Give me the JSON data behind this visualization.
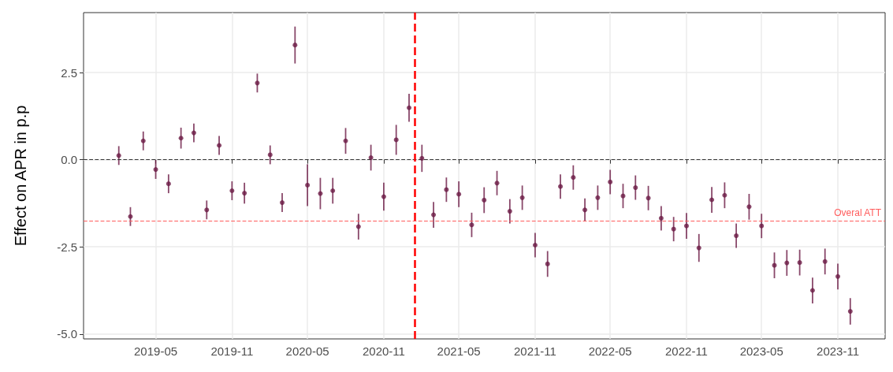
{
  "chart_data": {
    "type": "scatter",
    "ylabel": "Effect on APR in p.p",
    "x": [
      "2019-02",
      "2019-03",
      "2019-04",
      "2019-05",
      "2019-06",
      "2019-07",
      "2019-08",
      "2019-09",
      "2019-10",
      "2019-11",
      "2019-12",
      "2020-01",
      "2020-02",
      "2020-03",
      "2020-04",
      "2020-05",
      "2020-06",
      "2020-07",
      "2020-08",
      "2020-09",
      "2020-10",
      "2020-11",
      "2020-12",
      "2021-01",
      "2021-02",
      "2021-03",
      "2021-04",
      "2021-05",
      "2021-06",
      "2021-07",
      "2021-08",
      "2021-09",
      "2021-10",
      "2021-11",
      "2021-12",
      "2022-01",
      "2022-02",
      "2022-03",
      "2022-04",
      "2022-05",
      "2022-06",
      "2022-07",
      "2022-08",
      "2022-09",
      "2022-10",
      "2022-11",
      "2022-12",
      "2023-01",
      "2023-02",
      "2023-03",
      "2023-04",
      "2023-05",
      "2023-06",
      "2023-07",
      "2023-08",
      "2023-09",
      "2023-10",
      "2023-11",
      "2023-12"
    ],
    "values": [
      0.12,
      -1.63,
      0.54,
      -0.28,
      -0.69,
      0.62,
      0.77,
      -1.44,
      0.41,
      -0.89,
      -0.96,
      2.2,
      0.14,
      -1.23,
      3.29,
      -0.73,
      -0.97,
      -0.89,
      0.54,
      -1.92,
      0.06,
      -1.06,
      0.57,
      1.49,
      0.04,
      -1.58,
      -0.86,
      -0.99,
      -1.87,
      -1.16,
      -0.67,
      -1.48,
      -1.09,
      -2.45,
      -2.99,
      -0.77,
      -0.51,
      -1.44,
      -1.09,
      -0.64,
      -1.04,
      -0.8,
      -1.1,
      -1.68,
      -1.99,
      -1.9,
      -2.53,
      -1.15,
      -1.02,
      -2.18,
      -1.35,
      -1.9,
      -3.03,
      -2.96,
      -2.95,
      -3.75,
      -2.92,
      -3.35,
      -4.35
    ],
    "errors": [
      0.27,
      0.27,
      0.27,
      0.27,
      0.27,
      0.3,
      0.27,
      0.27,
      0.27,
      0.27,
      0.3,
      0.27,
      0.27,
      0.27,
      0.53,
      0.6,
      0.45,
      0.37,
      0.37,
      0.37,
      0.37,
      0.4,
      0.43,
      0.4,
      0.39,
      0.37,
      0.35,
      0.37,
      0.35,
      0.37,
      0.35,
      0.35,
      0.35,
      0.35,
      0.37,
      0.35,
      0.35,
      0.33,
      0.35,
      0.35,
      0.35,
      0.35,
      0.35,
      0.35,
      0.35,
      0.37,
      0.4,
      0.37,
      0.37,
      0.35,
      0.37,
      0.35,
      0.37,
      0.37,
      0.37,
      0.37,
      0.37,
      0.37,
      0.38
    ],
    "color": "#6b1a45",
    "marker": "circle",
    "xlim": [
      "2018-11-08",
      "2024-02-23"
    ],
    "xticks": [
      "2019-05",
      "2019-11",
      "2020-05",
      "2020-11",
      "2021-05",
      "2021-11",
      "2022-05",
      "2022-11",
      "2023-05",
      "2023-11"
    ],
    "ylim": [
      -5.14,
      4.22
    ],
    "yticks": [
      {
        "value": -5,
        "label": "-5.0"
      },
      {
        "value": -2.5,
        "label": "-2.5"
      },
      {
        "value": 0,
        "label": "0.0"
      },
      {
        "value": 2.5,
        "label": "2.5"
      }
    ],
    "ref_lines": [
      {
        "axis": "y",
        "value": 0,
        "label": null,
        "color": "#333333",
        "line_style": "dashed"
      },
      {
        "axis": "y",
        "value": -1.76,
        "label": "Overal ATT",
        "color": "#ff5c5c",
        "line_style": "dashed"
      },
      {
        "axis": "x",
        "value": "2021-01-15",
        "label": null,
        "color": "#ff0000",
        "line_style": "dashed"
      }
    ],
    "grid": true
  }
}
